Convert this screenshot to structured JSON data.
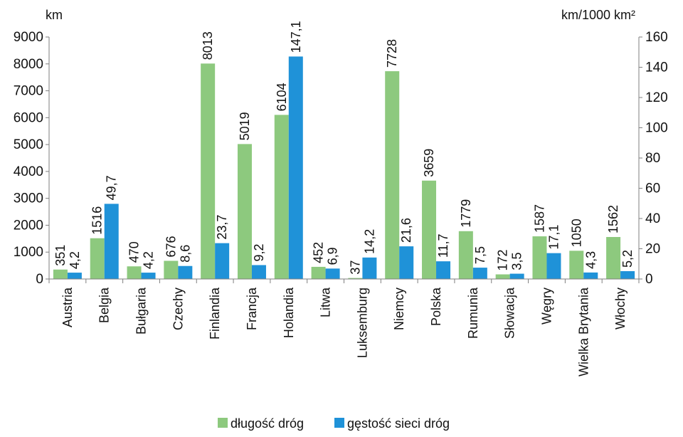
{
  "chart_data": {
    "type": "bar",
    "left_unit": "km",
    "right_unit": "km/1000 km²",
    "categories": [
      "Austria",
      "Belgia",
      "Bułgaria",
      "Czechy",
      "Finlandia",
      "Francja",
      "Holandia",
      "Litwa",
      "Luksemburg",
      "Niemcy",
      "Polska",
      "Rumunia",
      "Słowacja",
      "Węgry",
      "Wielka Brytania",
      "Włochy"
    ],
    "series": [
      {
        "name": "długość dróg",
        "color": "#8dc97e",
        "axis": "left",
        "values": [
          351,
          1516,
          470,
          676,
          8013,
          5019,
          6104,
          452,
          37,
          7728,
          3659,
          1779,
          172,
          1587,
          1050,
          1562
        ],
        "labels": [
          "351",
          "1516",
          "470",
          "676",
          "8013",
          "5019",
          "6104",
          "452",
          "37",
          "7728",
          "3659",
          "1779",
          "172",
          "1587",
          "1050",
          "1562"
        ]
      },
      {
        "name": "gęstość sieci dróg",
        "color": "#1f92d8",
        "axis": "right",
        "values": [
          4.2,
          49.7,
          4.2,
          8.6,
          23.7,
          9.2,
          147.1,
          6.9,
          14.2,
          21.6,
          11.7,
          7.5,
          3.5,
          17.1,
          4.3,
          5.2
        ],
        "labels": [
          "4,2",
          "49,7",
          "4,2",
          "8,6",
          "23,7",
          "9,2",
          "147,1",
          "6,9",
          "14,2",
          "21,6",
          "11,7",
          "7,5",
          "3,5",
          "17,1",
          "4,3",
          "5,2"
        ]
      }
    ],
    "y_left": {
      "min": 0,
      "max": 9000,
      "ticks": [
        "0",
        "1000",
        "2000",
        "3000",
        "4000",
        "5000",
        "6000",
        "7000",
        "8000",
        "9000"
      ]
    },
    "y_right": {
      "min": 0,
      "max": 160,
      "ticks": [
        "0",
        "20",
        "40",
        "60",
        "80",
        "100",
        "120",
        "140",
        "160"
      ]
    },
    "grid": false,
    "legend_position": "bottom"
  }
}
